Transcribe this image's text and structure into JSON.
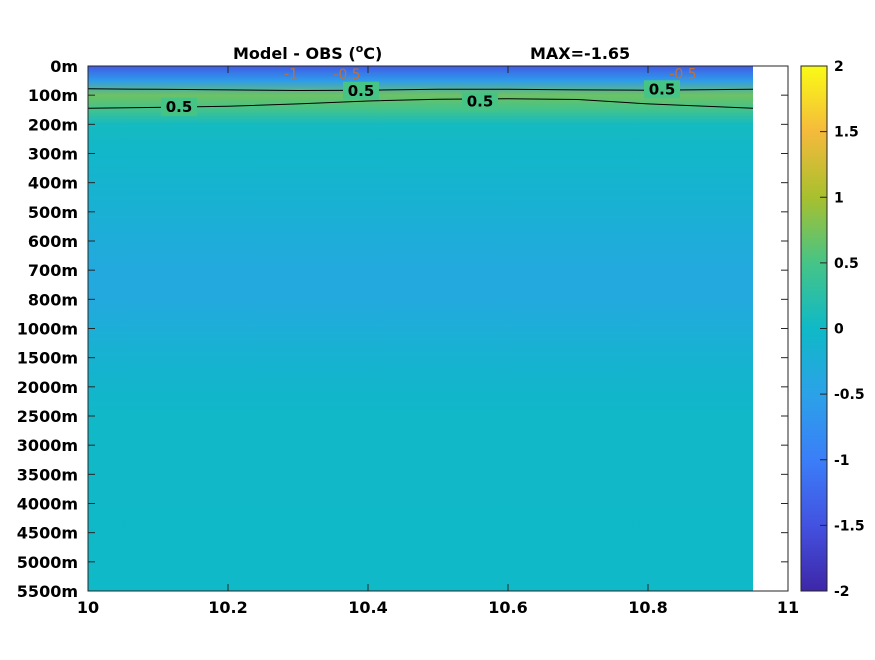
{
  "chart_data": {
    "type": "heatmap",
    "title_left": "Model - OBS (",
    "title_unit": "C)",
    "title_right": "MAX=-1.65",
    "xlim": [
      10,
      11
    ],
    "x_ticks": [
      "10",
      "10.2",
      "10.4",
      "10.6",
      "10.8",
      "11"
    ],
    "x_tick_values": [
      10,
      10.2,
      10.4,
      10.6,
      10.8,
      11
    ],
    "x_data_end": 10.95,
    "y_ticks": [
      "0m",
      "100m",
      "200m",
      "300m",
      "400m",
      "500m",
      "600m",
      "700m",
      "800m",
      "1000m",
      "1500m",
      "2000m",
      "2500m",
      "3000m",
      "3500m",
      "4000m",
      "4500m",
      "5000m",
      "5500m"
    ],
    "colorbar": {
      "range": [
        -2,
        2
      ],
      "ticks": [
        "2",
        "1.5",
        "1",
        "0.5",
        "0",
        "-0.5",
        "-1",
        "-1.5",
        "-2"
      ],
      "tick_values": [
        2,
        1.5,
        1,
        0.5,
        0,
        -0.5,
        -1,
        -1.5,
        -2
      ]
    },
    "depth_profile": [
      {
        "depth": "0m",
        "value": -1.4
      },
      {
        "depth": "50m",
        "value": -0.6
      },
      {
        "depth": "100m",
        "value": 0.7
      },
      {
        "depth": "150m",
        "value": 0.45
      },
      {
        "depth": "200m",
        "value": 0.05
      },
      {
        "depth": "300m",
        "value": -0.05
      },
      {
        "depth": "500m",
        "value": -0.2
      },
      {
        "depth": "700m",
        "value": -0.35
      },
      {
        "depth": "800m",
        "value": -0.35
      },
      {
        "depth": "1000m",
        "value": -0.25
      },
      {
        "depth": "1500m",
        "value": -0.15
      },
      {
        "depth": "2000m",
        "value": -0.08
      },
      {
        "depth": "2500m",
        "value": -0.02
      },
      {
        "depth": "5500m",
        "value": 0.0
      }
    ],
    "contour_labels": [
      {
        "text": "0.5",
        "x": 10.13,
        "depth_index": 1.4
      },
      {
        "text": "0.5",
        "x": 10.39,
        "depth_index": 0.85
      },
      {
        "text": "0.5",
        "x": 10.56,
        "depth_index": 1.22
      },
      {
        "text": "0.5",
        "x": 10.82,
        "depth_index": 0.8
      },
      {
        "text": "-1",
        "x": 10.29,
        "depth_index": 0.25
      },
      {
        "text": "-0.5",
        "x": 10.37,
        "depth_index": 0.28
      },
      {
        "text": "-0.5",
        "x": 10.85,
        "depth_index": 0.25
      }
    ]
  }
}
